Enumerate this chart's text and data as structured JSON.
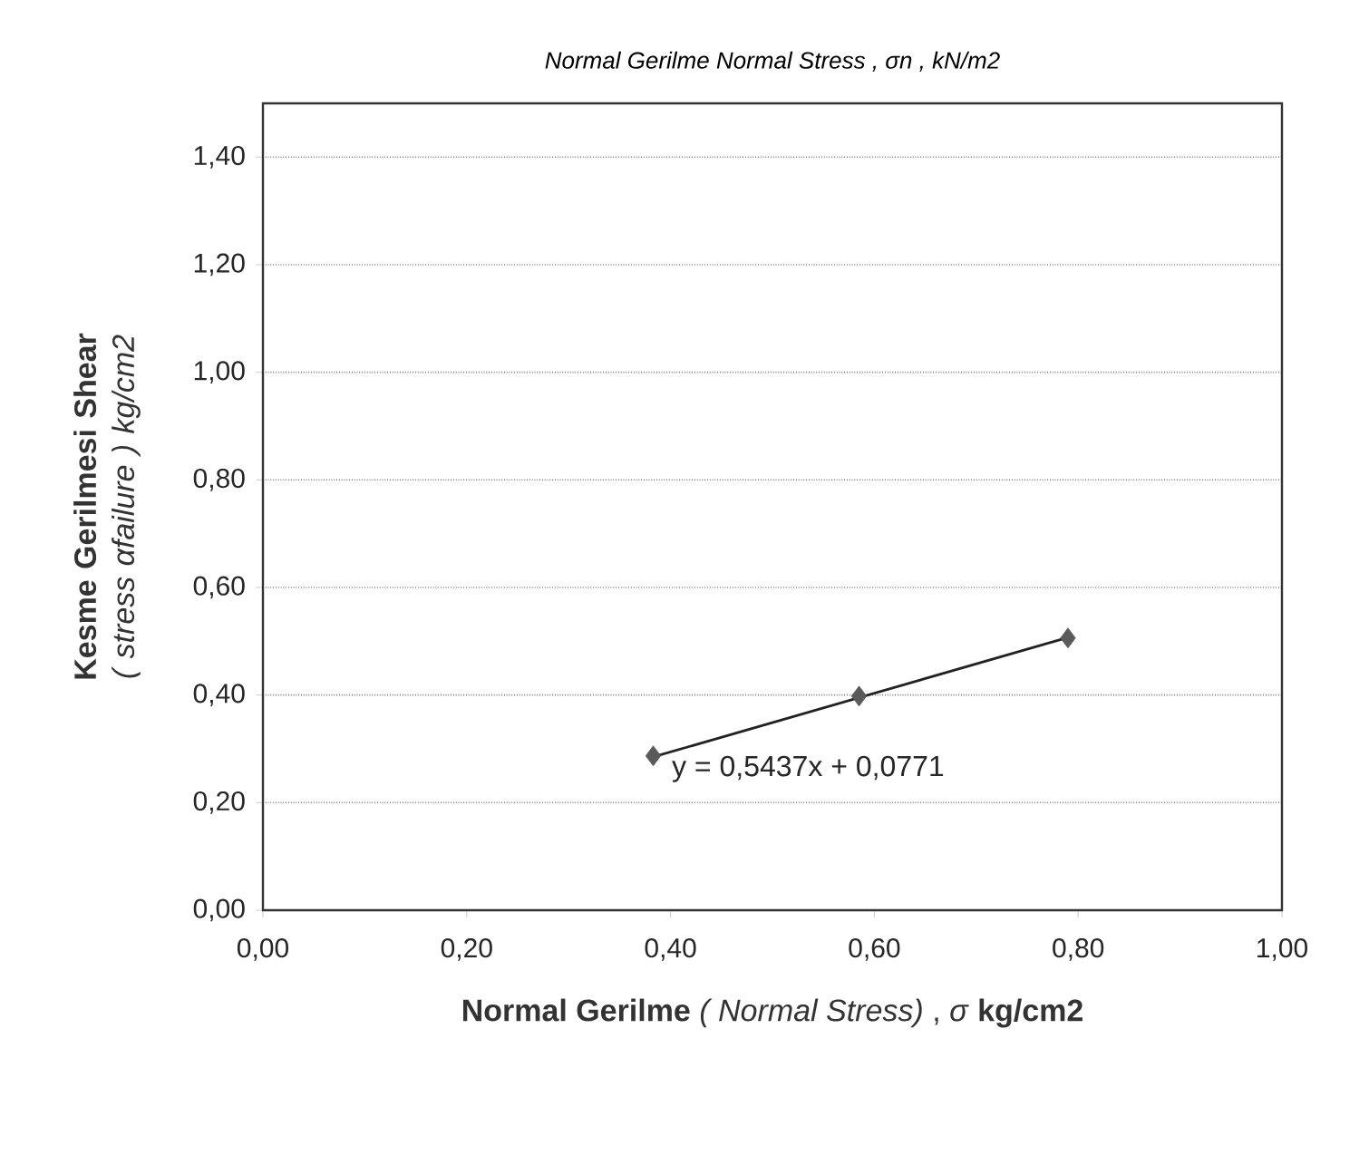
{
  "chart_data": {
    "type": "scatter",
    "title": "Normal Gerilme Normal Stress ,  σn , kN/m2",
    "xlabel": "**Normal Gerilme** *( Normal Stress)* ,  *σ*  **kg/cm2**",
    "ylabel": "**Kesme   Gerilmesi   Shear** *( stress αfailure ) kg/cm2*",
    "grid": "y",
    "xlim": [
      0,
      1.0
    ],
    "ylim": [
      0,
      1.5
    ],
    "xticks": [
      {
        "value": 0,
        "label": "0,00"
      },
      {
        "value": 0.2,
        "label": "0,20"
      },
      {
        "value": 0.4,
        "label": "0,40"
      },
      {
        "value": 0.6,
        "label": "0,60"
      },
      {
        "value": 0.8,
        "label": "0,80"
      },
      {
        "value": 1.0,
        "label": "1,00"
      }
    ],
    "yticks": [
      {
        "value": 0,
        "label": "0,00"
      },
      {
        "value": 0.2,
        "label": "0,20"
      },
      {
        "value": 0.4,
        "label": "0,40"
      },
      {
        "value": 0.6,
        "label": "0,60"
      },
      {
        "value": 0.8,
        "label": "0,80"
      },
      {
        "value": 1.0,
        "label": "1,00"
      },
      {
        "value": 1.2,
        "label": "1,20"
      },
      {
        "value": 1.4,
        "label": "1,40"
      }
    ],
    "series": [
      {
        "marker": "diamond",
        "color": "#5a5a5a",
        "x": [
          0.383,
          0.585,
          0.79
        ],
        "values": [
          0.287,
          0.398,
          0.506
        ]
      },
      {
        "type": "line",
        "marker": "none",
        "color": "#222222",
        "x": [
          0.383,
          0.79
        ],
        "values": [
          0.285,
          0.507
        ]
      }
    ],
    "annotations": [
      "y = 0,5437x + 0,0771"
    ]
  }
}
